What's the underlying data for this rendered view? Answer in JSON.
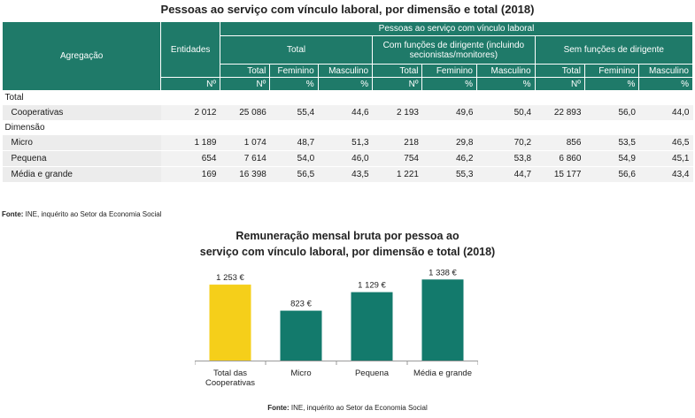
{
  "table": {
    "title": "Pessoas ao serviço com vínculo laboral, por dimensão e total (2018)",
    "header": {
      "agregacao": "Agregação",
      "entidades": "Entidades",
      "group": "Pessoas ao serviço com vínculo laboral",
      "total": "Total",
      "com": "Com funções de dirigente (incluindo secionistas/monitores)",
      "sem": "Sem funções de dirigente",
      "col_total": "Total",
      "col_fem": "Feminino",
      "col_masc": "Masculino",
      "unit_n": "Nº",
      "unit_pct": "%"
    },
    "sections": [
      {
        "label": "Total",
        "rows": [
          {
            "label": "Cooperativas",
            "values": [
              "2 012",
              "25 086",
              "55,4",
              "44,6",
              "2 193",
              "49,6",
              "50,4",
              "22 893",
              "56,0",
              "44,0"
            ]
          }
        ]
      },
      {
        "label": "Dimensão",
        "rows": [
          {
            "label": "Micro",
            "values": [
              "1 189",
              "1 074",
              "48,7",
              "51,3",
              "218",
              "29,8",
              "70,2",
              "856",
              "53,5",
              "46,5"
            ]
          },
          {
            "label": "Pequena",
            "values": [
              "654",
              "7 614",
              "54,0",
              "46,0",
              "754",
              "46,2",
              "53,8",
              "6 860",
              "54,9",
              "45,1"
            ]
          },
          {
            "label": "Média e grande",
            "values": [
              "169",
              "16 398",
              "56,5",
              "43,5",
              "1 221",
              "55,3",
              "44,7",
              "15 177",
              "56,6",
              "43,4"
            ]
          }
        ]
      }
    ],
    "source_label": "Fonte:",
    "source_text": " INE, inquérito ao Setor da Economia Social"
  },
  "chart_data": {
    "type": "bar",
    "title_line1": "Remuneração mensal bruta por pessoa ao",
    "title_line2": "serviço com vínculo laboral, por dimensão e total (2018)",
    "categories": [
      [
        "Total das",
        "Cooperativas"
      ],
      [
        "Micro"
      ],
      [
        "Pequena"
      ],
      [
        "Média e grande"
      ]
    ],
    "values": [
      1253,
      823,
      1129,
      1338
    ],
    "value_labels": [
      "1 253 €",
      "823 €",
      "1 129 €",
      "1 338 €"
    ],
    "colors": [
      "#f5cf1a",
      "#137a6c",
      "#137a6c",
      "#137a6c"
    ],
    "ylim": [
      0,
      1400
    ],
    "grid": false,
    "source_label": "Fonte:",
    "source_text": " INE, inquérito ao Setor da Economia Social"
  }
}
